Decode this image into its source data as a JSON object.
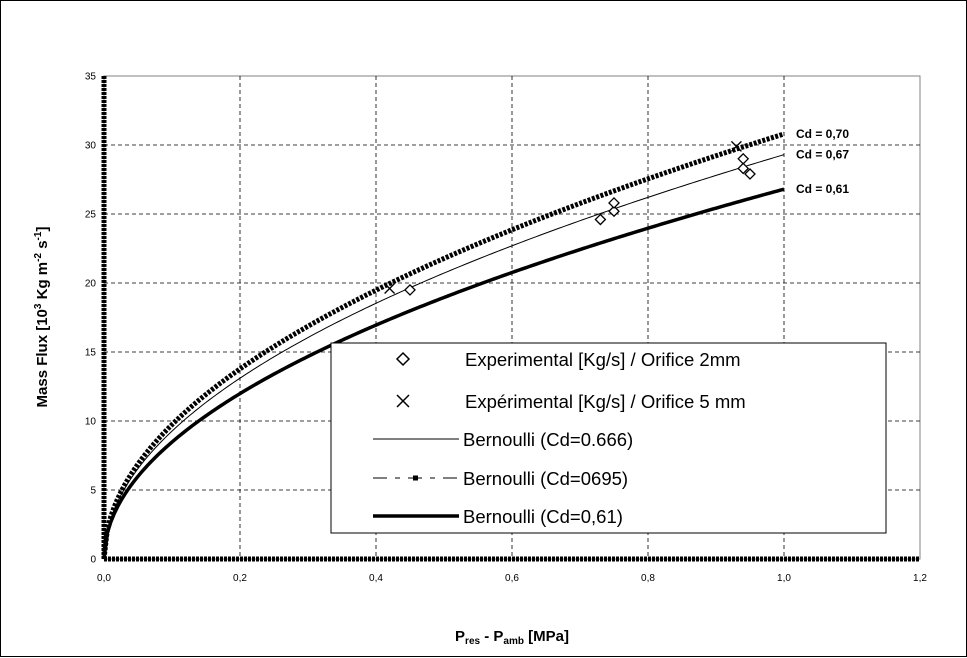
{
  "chart_data": {
    "type": "scatter",
    "xlabel": {
      "main": "P",
      "sub1": "res",
      "mid": " - P",
      "sub2": "amb",
      "tail": " [MPa]"
    },
    "ylabel": {
      "main": "Mass Flux [10",
      "sup1": "3",
      "mid": " Kg m",
      "sup2": "-2",
      "mid2": " s",
      "sup3": "-1",
      "tail": "]"
    },
    "xlim": [
      0,
      1.2
    ],
    "ylim": [
      0,
      35
    ],
    "x_ticks": [
      "0,0",
      "0,2",
      "0,4",
      "0,6",
      "0,8",
      "1,0",
      "1,2"
    ],
    "y_ticks": [
      "0",
      "5",
      "10",
      "15",
      "20",
      "25",
      "30",
      "35"
    ],
    "grid": true,
    "legend_position": "bottom-right",
    "series": [
      {
        "name": "Experimental [Kg/s] / Orifice 2mm",
        "marker": "diamond",
        "points": [
          [
            0.45,
            19.5
          ],
          [
            0.73,
            24.6
          ],
          [
            0.75,
            25.2
          ],
          [
            0.75,
            25.8
          ],
          [
            0.94,
            29.0
          ],
          [
            0.94,
            28.3
          ],
          [
            0.95,
            27.9
          ]
        ]
      },
      {
        "name": "Expérimental [Kg/s] / Orifice 5 mm",
        "marker": "x",
        "points": [
          [
            0.42,
            19.6
          ],
          [
            0.93,
            29.9
          ]
        ]
      },
      {
        "name": "Bernoulli (Cd=0.666)",
        "style": "thin",
        "coef": 29.3,
        "end_label": "Cd = 0,67"
      },
      {
        "name": "Bernoulli (Cd=0695)",
        "style": "dashed-dot",
        "coef": 30.8,
        "end_label": "Cd = 0,70"
      },
      {
        "name": "Bernoulli (Cd=0,61)",
        "style": "thick",
        "coef": 26.8,
        "end_label": "Cd = 0,61"
      }
    ]
  }
}
